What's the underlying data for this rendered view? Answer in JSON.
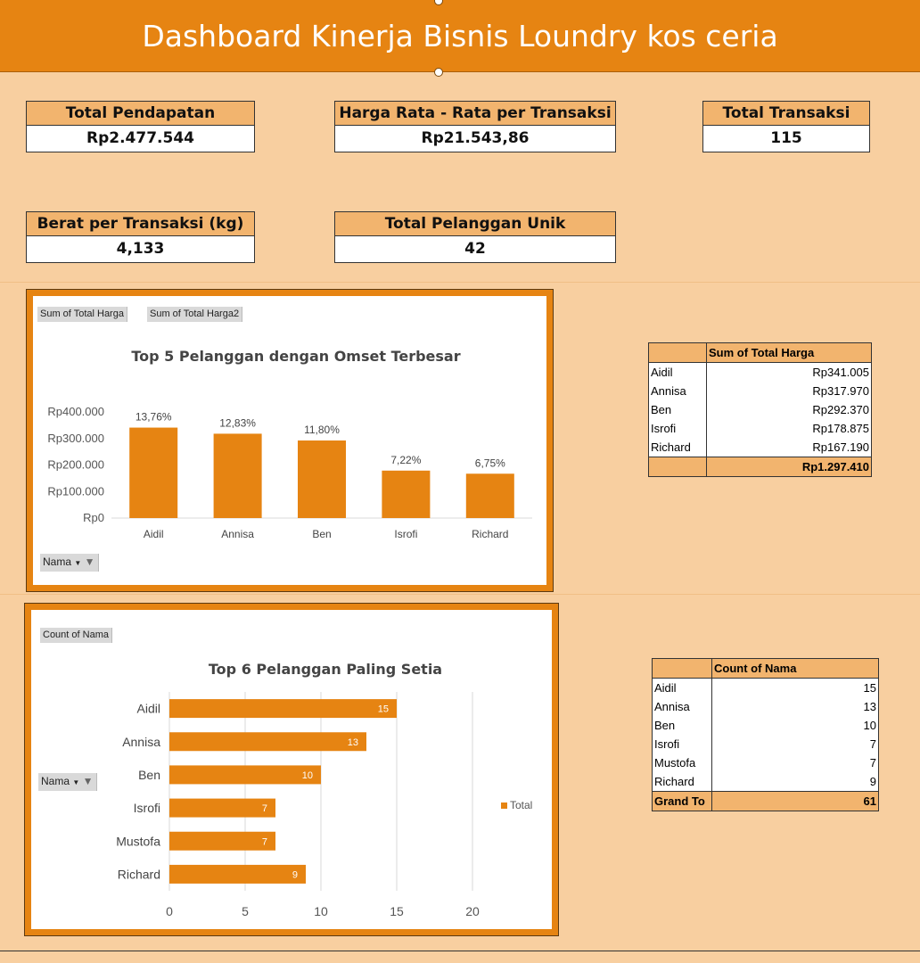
{
  "header": {
    "title": "Dashboard Kinerja Bisnis Loundry kos ceria"
  },
  "kpis": {
    "total_pendapatan": {
      "label": "Total Pendapatan",
      "value": "Rp2.477.544"
    },
    "harga_rata": {
      "label": "Harga Rata - Rata per Transaksi",
      "value": "Rp21.543,86"
    },
    "total_transaksi": {
      "label": "Total Transaksi",
      "value": "115"
    },
    "berat": {
      "label": "Berat per Transaksi (kg)",
      "value": "4,133"
    },
    "pelanggan_unik": {
      "label": "Total Pelanggan Unik",
      "value": "42"
    }
  },
  "chart1": {
    "field_buttons": [
      "Sum of Total Harga",
      "Sum of Total Harga2"
    ],
    "axis_button": "Nama",
    "filter_icon": "funnel-icon",
    "accent": "#e68412"
  },
  "chart2": {
    "field_button": "Count of Nama",
    "axis_button": "Nama",
    "filter_icon": "funnel-icon",
    "accent": "#e68412"
  },
  "chart_data": [
    {
      "type": "bar",
      "title": "Top 5 Pelanggan dengan Omset Terbesar",
      "categories": [
        "Aidil",
        "Annisa",
        "Ben",
        "Isrofi",
        "Richard"
      ],
      "values": [
        341005,
        317970,
        292370,
        178875,
        167190
      ],
      "data_labels": [
        "13,76%",
        "12,83%",
        "11,80%",
        "7,22%",
        "6,75%"
      ],
      "yticks": [
        "Rp0",
        "Rp100.000",
        "Rp200.000",
        "Rp300.000",
        "Rp400.000"
      ],
      "ylim": [
        0,
        400000
      ],
      "grid": false
    },
    {
      "type": "bar",
      "orientation": "horizontal",
      "title": "Top 6 Pelanggan Paling Setia",
      "categories": [
        "Aidil",
        "Annisa",
        "Ben",
        "Isrofi",
        "Mustofa",
        "Richard"
      ],
      "values": [
        15,
        13,
        10,
        7,
        7,
        9
      ],
      "xticks": [
        "0",
        "5",
        "10",
        "15",
        "20"
      ],
      "xlim": [
        0,
        20
      ],
      "grid": true,
      "legend": {
        "entries": [
          "Total"
        ],
        "placement": "right"
      }
    }
  ],
  "pivot1": {
    "header": "Sum of Total Harga",
    "rows": [
      {
        "name": "Aidil",
        "value": "Rp341.005"
      },
      {
        "name": "Annisa",
        "value": "Rp317.970"
      },
      {
        "name": "Ben",
        "value": "Rp292.370"
      },
      {
        "name": "Isrofi",
        "value": "Rp178.875"
      },
      {
        "name": "Richard",
        "value": "Rp167.190"
      }
    ],
    "total_label": "",
    "total_value": "Rp1.297.410"
  },
  "pivot2": {
    "header": "Count of Nama",
    "rows": [
      {
        "name": "Aidil",
        "value": "15"
      },
      {
        "name": "Annisa",
        "value": "13"
      },
      {
        "name": "Ben",
        "value": "10"
      },
      {
        "name": "Isrofi",
        "value": "7"
      },
      {
        "name": "Mustofa",
        "value": "7"
      },
      {
        "name": "Richard",
        "value": "9"
      }
    ],
    "total_label": "Grand To",
    "total_value": "61"
  }
}
